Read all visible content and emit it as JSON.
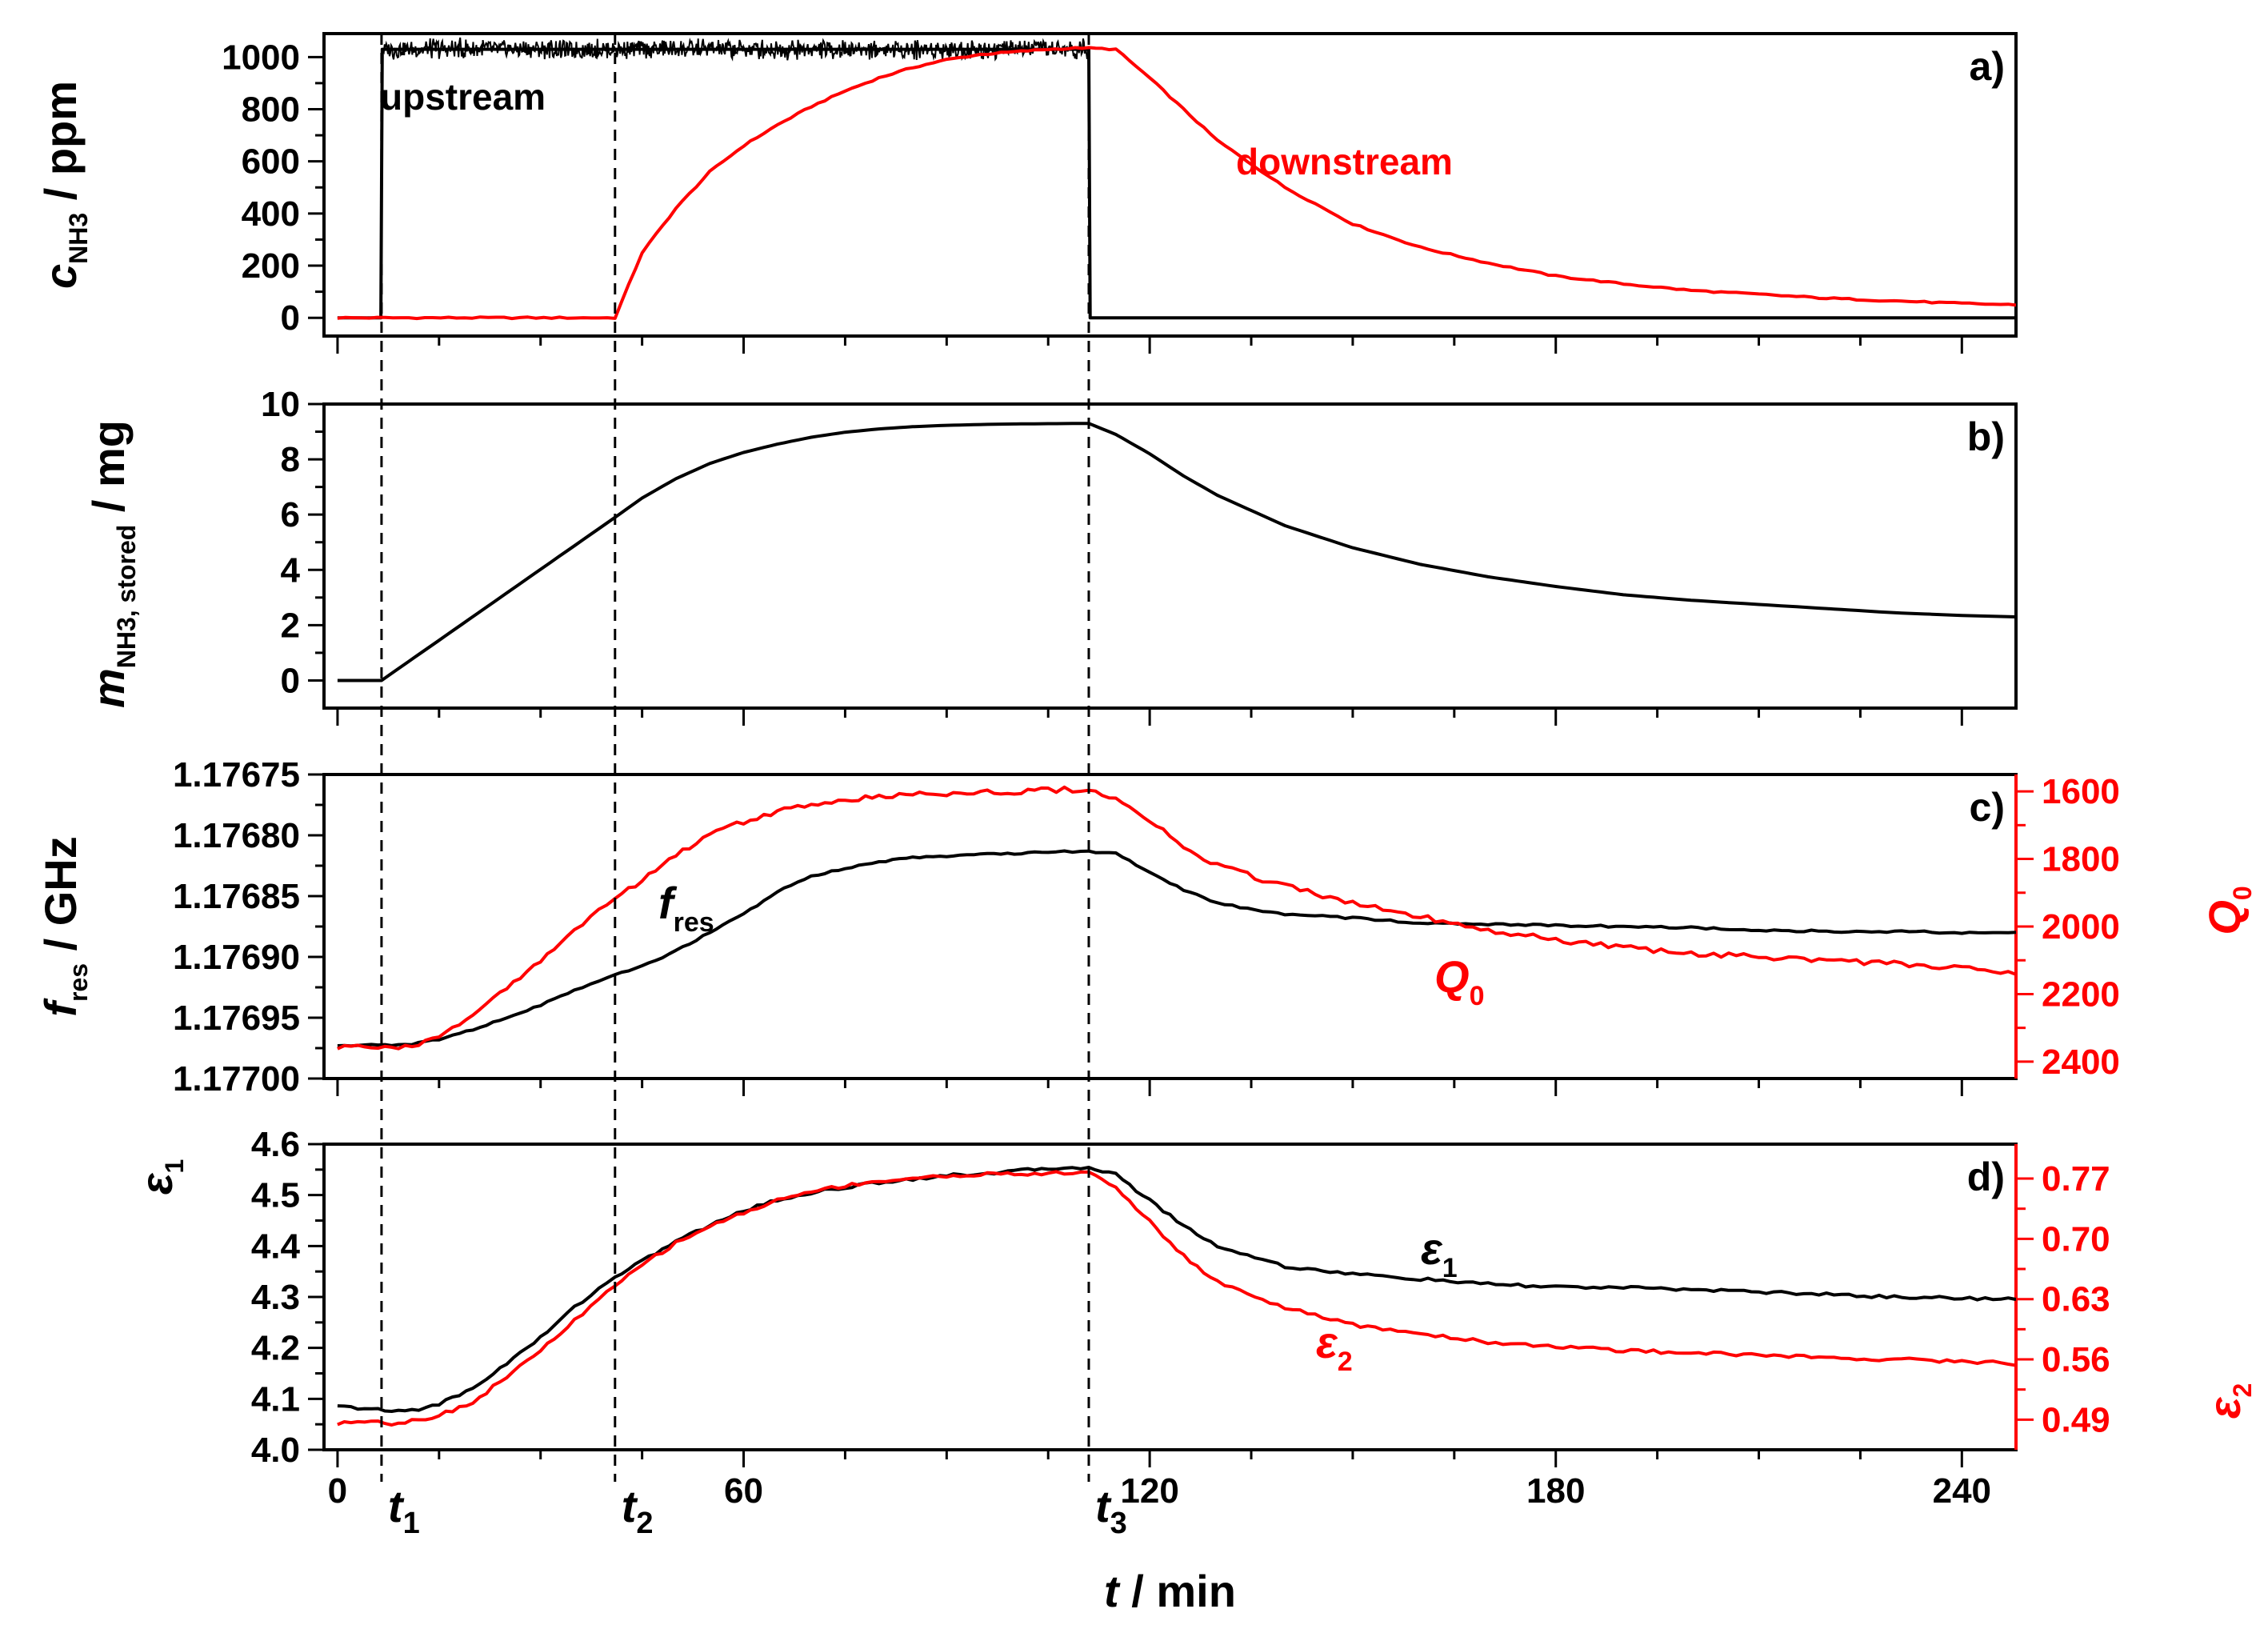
{
  "chart_data": [
    {
      "panel": "a)",
      "type": "line",
      "xlabel": "t / min",
      "ylabel": "c_NH3 / ppm",
      "xlim": [
        -2,
        248
      ],
      "ylim": [
        -70,
        1090
      ],
      "yticks": [
        0,
        200,
        400,
        600,
        800,
        1000
      ],
      "series": [
        {
          "name": "upstream",
          "color": "#000000",
          "x": [
            0,
            6.4,
            6.6,
            111,
            111.2,
            248
          ],
          "y": [
            0,
            0,
            1030,
            1030,
            0,
            0
          ]
        },
        {
          "name": "downstream",
          "color": "#ff0000",
          "x": [
            0,
            41,
            45,
            50,
            55,
            60,
            65,
            70,
            75,
            80,
            85,
            90,
            95,
            100,
            105,
            110,
            115,
            120,
            125,
            130,
            140,
            150,
            160,
            170,
            180,
            190,
            200,
            210,
            220,
            230,
            240,
            248
          ],
          "y": [
            0,
            0,
            250,
            420,
            560,
            660,
            740,
            810,
            870,
            920,
            960,
            990,
            1010,
            1020,
            1030,
            1035,
            1030,
            920,
            800,
            680,
            500,
            360,
            270,
            210,
            160,
            130,
            105,
            90,
            75,
            65,
            55,
            50
          ]
        }
      ],
      "annotations": [
        "upstream",
        "downstream"
      ]
    },
    {
      "panel": "b)",
      "type": "line",
      "ylabel": "m_NH3, stored / mg",
      "xlim": [
        -2,
        248
      ],
      "ylim": [
        -1,
        10
      ],
      "yticks": [
        0,
        2,
        4,
        6,
        8,
        10
      ],
      "series": [
        {
          "name": "m_NH3, stored",
          "color": "#000000",
          "x": [
            0,
            6.5,
            41,
            45,
            50,
            55,
            60,
            65,
            70,
            75,
            80,
            85,
            90,
            95,
            100,
            105,
            111,
            115,
            120,
            125,
            130,
            140,
            150,
            160,
            170,
            180,
            190,
            200,
            210,
            220,
            230,
            240,
            248
          ],
          "y": [
            0,
            0,
            5.9,
            6.6,
            7.3,
            7.85,
            8.25,
            8.55,
            8.8,
            8.98,
            9.1,
            9.18,
            9.23,
            9.26,
            9.28,
            9.29,
            9.3,
            8.9,
            8.2,
            7.4,
            6.7,
            5.6,
            4.8,
            4.2,
            3.75,
            3.4,
            3.1,
            2.9,
            2.75,
            2.6,
            2.45,
            2.35,
            2.3
          ]
        }
      ]
    },
    {
      "panel": "c)",
      "type": "line",
      "ylabel": "f_res / GHz",
      "ylabel_right": "Q_0",
      "xlim": [
        -2,
        248
      ],
      "ylim": [
        1.177,
        1.17675
      ],
      "yticks": [
        "1.17675",
        "1.17680",
        "1.17685",
        "1.17690",
        "1.17695",
        "1.17700"
      ],
      "ylim_right": [
        1550,
        2450
      ],
      "yticks_right": [
        1600,
        1800,
        2000,
        2200,
        2400
      ],
      "series": [
        {
          "name": "f_res",
          "color": "#000000",
          "axis": "left",
          "x": [
            0,
            5,
            8,
            12,
            15,
            20,
            25,
            30,
            35,
            41,
            45,
            50,
            55,
            60,
            65,
            70,
            75,
            80,
            85,
            90,
            95,
            100,
            105,
            111,
            115,
            120,
            125,
            130,
            140,
            150,
            160,
            170,
            180,
            190,
            200,
            210,
            220,
            230,
            240,
            248
          ],
          "y": [
            1.176973,
            1.176972,
            1.176973,
            1.176971,
            1.176968,
            1.17696,
            1.17695,
            1.17694,
            1.176927,
            1.176915,
            1.176908,
            1.176895,
            1.17688,
            1.176865,
            1.176846,
            1.176834,
            1.176827,
            1.176822,
            1.176818,
            1.176817,
            1.176816,
            1.176815,
            1.176814,
            1.176813,
            1.176815,
            1.17683,
            1.176845,
            1.176856,
            1.176865,
            1.176868,
            1.176872,
            1.176873,
            1.176874,
            1.176875,
            1.176876,
            1.176878,
            1.176879,
            1.176879,
            1.17688,
            1.17688
          ]
        },
        {
          "name": "Q_0",
          "color": "#ff0000",
          "axis": "right",
          "x": [
            0,
            5,
            8,
            12,
            15,
            20,
            25,
            30,
            35,
            41,
            45,
            50,
            55,
            60,
            65,
            70,
            75,
            80,
            85,
            90,
            95,
            100,
            105,
            111,
            115,
            120,
            125,
            130,
            140,
            150,
            160,
            170,
            180,
            190,
            200,
            210,
            220,
            230,
            240,
            248
          ],
          "y": [
            2360,
            2355,
            2365,
            2350,
            2320,
            2260,
            2180,
            2100,
            2010,
            1920,
            1860,
            1790,
            1730,
            1690,
            1660,
            1640,
            1625,
            1615,
            1610,
            1605,
            1600,
            1600,
            1595,
            1595,
            1620,
            1690,
            1760,
            1820,
            1880,
            1930,
            1970,
            2010,
            2040,
            2060,
            2080,
            2090,
            2100,
            2110,
            2125,
            2140
          ]
        }
      ],
      "annotations": [
        "f_res",
        "Q_0"
      ]
    },
    {
      "panel": "d)",
      "type": "line",
      "ylabel": "ε_1",
      "ylabel_right": "ε_2",
      "xlim": [
        -2,
        248
      ],
      "ylim": [
        4.0,
        4.6
      ],
      "yticks": [
        "4.0",
        "4.1",
        "4.2",
        "4.3",
        "4.4",
        "4.5",
        "4.6"
      ],
      "ylim_right": [
        0.455,
        0.81
      ],
      "yticks_right": [
        "0.49",
        "0.56",
        "0.63",
        "0.70",
        "0.77"
      ],
      "series": [
        {
          "name": "ε_1",
          "color": "#000000",
          "axis": "left",
          "x": [
            0,
            5,
            8,
            12,
            15,
            20,
            25,
            30,
            35,
            41,
            45,
            50,
            55,
            60,
            65,
            70,
            75,
            80,
            85,
            90,
            95,
            100,
            105,
            111,
            115,
            120,
            125,
            130,
            140,
            150,
            160,
            170,
            180,
            190,
            200,
            210,
            220,
            230,
            240,
            248
          ],
          "y": [
            4.085,
            4.08,
            4.075,
            4.08,
            4.09,
            4.12,
            4.17,
            4.22,
            4.28,
            4.34,
            4.37,
            4.41,
            4.44,
            4.47,
            4.49,
            4.505,
            4.515,
            4.525,
            4.532,
            4.538,
            4.542,
            4.547,
            4.552,
            4.555,
            4.54,
            4.49,
            4.44,
            4.4,
            4.36,
            4.345,
            4.335,
            4.325,
            4.32,
            4.318,
            4.315,
            4.31,
            4.305,
            4.3,
            4.298,
            4.295
          ]
        },
        {
          "name": "ε_2",
          "color": "#ff0000",
          "axis": "right",
          "x": [
            0,
            5,
            8,
            12,
            15,
            20,
            25,
            30,
            35,
            41,
            45,
            50,
            55,
            60,
            65,
            70,
            75,
            80,
            85,
            90,
            95,
            100,
            105,
            111,
            115,
            120,
            125,
            130,
            140,
            150,
            160,
            170,
            180,
            190,
            200,
            210,
            220,
            230,
            240,
            248
          ],
          "y": [
            0.485,
            0.49,
            0.485,
            0.49,
            0.495,
            0.51,
            0.54,
            0.57,
            0.605,
            0.645,
            0.67,
            0.695,
            0.715,
            0.73,
            0.745,
            0.755,
            0.762,
            0.767,
            0.77,
            0.773,
            0.775,
            0.775,
            0.776,
            0.777,
            0.76,
            0.72,
            0.68,
            0.65,
            0.62,
            0.6,
            0.59,
            0.58,
            0.575,
            0.57,
            0.568,
            0.565,
            0.562,
            0.56,
            0.558,
            0.555
          ]
        }
      ],
      "annotations": [
        "ε_1",
        "ε_2"
      ]
    }
  ],
  "x_axis": {
    "title": "t / min",
    "ticks": [
      0,
      60,
      120,
      180,
      240
    ],
    "events": [
      {
        "label": "t1",
        "t": 6.5
      },
      {
        "label": "t2",
        "t": 41
      },
      {
        "label": "t3",
        "t": 111
      }
    ]
  }
}
